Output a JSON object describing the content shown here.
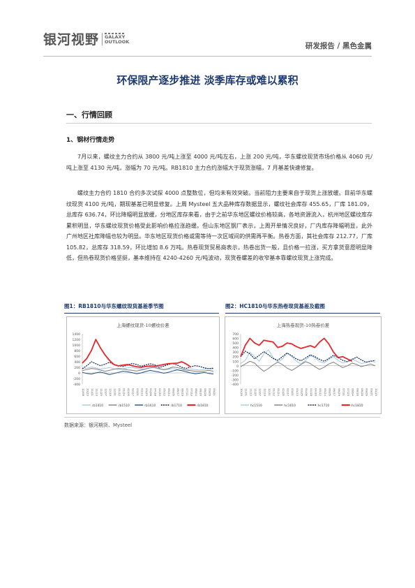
{
  "header": {
    "logo_cn": "银河视野",
    "logo_en_1": "GALAXY",
    "logo_en_2": "OUTLOOK",
    "breadcrumb": "研发报告 / 黑色金属"
  },
  "doc": {
    "title": "环保限产逐步推进 淡季库存或难以累积",
    "section_1": "一、行情回顾",
    "subsection_1": "1、钢材行情走势",
    "para_1": "7月以来，螺纹主力合约从 3800 元/吨上涨至 4000 元/吨左右，上涨 200 元/吨，华东螺纹现货市场价格从 4060 元/吨上涨至 4130 元/吨，涨幅为 70 元/吨。RB1810 主力合约涨幅大于现货涨幅，7 月基差快速修复。",
    "para_2": "螺纹主力合约 1810 合约多次试探 4000 点整数位，但均未有效突破。当前阻力主要来自于现货上涨放缓。目前华东螺纹现货 4100 元/吨，期现基差已明显修复。上周 Mysteel 五大品种库存数据显示，螺纹社会库存 455.65，厂库 181.09，总库存 636.74，环比降幅明显放缓，分地区库存来看，由于之前华东地区螺纹价格较高，各地资源流入，杭州地区螺纹库存累积明显，华东螺纹现货价格受此影响价格拉涨趋缓。但山东地区钢厂表示，上周开单情况良好，厂内库存降幅明显，此外广州地区社库降幅也较为明显。华东地区现货价格或需等待一次区域间的供需再平衡。热卷方面，其社会库存 212.77，厂库 105.82，总库存 318.59，环比增加 8.6 万吨。热卷现货贸易商表示，热卷出货一般，且价格一拉涨，买方拿货意愿明显降低，但热卷现货价格坚挺，基本维持在 4240-4260 元/吨波动，现货卷螺差的收窄基本靠螺纹现货上涨完成。"
  },
  "figures": {
    "fig1_caption": "图1：RB1810与华东螺纹现货基差季节图",
    "fig2_caption": "图2：HC1810与华东热卷现货基差及截图",
    "source": "数据来源：银河期货、Mysteel"
  },
  "chart_data": [
    {
      "type": "line",
      "title": "上海螺纹现货-10螺纹价差",
      "ylim": [
        -400,
        1400
      ],
      "yticks": [
        -400,
        -200,
        0,
        200,
        400,
        600,
        800,
        1000,
        1200,
        1400
      ],
      "xlabels": [
        "10/08",
        "10/20",
        "11/01",
        "11/13",
        "11/25",
        "12/07",
        "12/19",
        "12/31",
        "01/12",
        "01/24",
        "02/05",
        "02/17",
        "03/01",
        "03/13",
        "03/25",
        "04/06",
        "04/18",
        "04/30",
        "05/12",
        "05/24",
        "06/05",
        "06/17",
        "06/29",
        "07/11",
        "07/23",
        "08/04",
        "08/16",
        "08/28",
        "09/09",
        "09/21"
      ],
      "legend_position": "bottom",
      "grid": false,
      "series": [
        {
          "name": "rb1410",
          "color": "#9ec9e2",
          "dash": false,
          "width": 1,
          "values": [
            150,
            170,
            210,
            180,
            140,
            160,
            190,
            150,
            120,
            140,
            180,
            200,
            160,
            130,
            150,
            200,
            180,
            140,
            110,
            130,
            160,
            120,
            90,
            110,
            140,
            120,
            100,
            130,
            160,
            140
          ]
        },
        {
          "name": "rb1510",
          "color": "#7f7f7f",
          "dash": false,
          "width": 1,
          "values": [
            80,
            120,
            160,
            140,
            100,
            60,
            90,
            130,
            160,
            140,
            110,
            90,
            70,
            100,
            140,
            180,
            200,
            160,
            120,
            150,
            210,
            190,
            150,
            100,
            80,
            60,
            50,
            70,
            90,
            60
          ]
        },
        {
          "name": "rb1610",
          "color": "#1a4f8a",
          "dash": false,
          "width": 1,
          "values": [
            20,
            -20,
            -40,
            0,
            30,
            -10,
            -60,
            -20,
            20,
            60,
            40,
            10,
            -30,
            0,
            50,
            90,
            60,
            30,
            -10,
            20,
            70,
            110,
            80,
            40,
            0,
            -30,
            -10,
            20,
            -20,
            -40
          ]
        },
        {
          "name": "rb1710",
          "color": "#0d1f55",
          "dash": true,
          "width": 1.2,
          "values": [
            150,
            260,
            400,
            330,
            260,
            310,
            380,
            300,
            260,
            230,
            280,
            340,
            300,
            240,
            280,
            330,
            290,
            200,
            240,
            300,
            340,
            280,
            200,
            160,
            220,
            260,
            230,
            180,
            150,
            170
          ]
        },
        {
          "name": "rb1810",
          "color": "#e8262b",
          "dash": false,
          "width": 1.8,
          "values": [
            350,
            520,
            800,
            1200,
            900,
            650,
            450,
            300,
            250,
            280,
            300,
            260,
            220,
            200,
            230,
            250,
            240,
            270,
            300,
            330,
            340,
            350,
            400,
            320,
            210,
            null,
            null,
            null,
            null,
            null
          ]
        }
      ]
    },
    {
      "type": "line",
      "title": "上海热卷现货-10热卷价差",
      "ylim": [
        -400,
        700
      ],
      "yticks": [
        -400,
        -300,
        -200,
        -100,
        0,
        100,
        200,
        300,
        400,
        500,
        600,
        700
      ],
      "xlabels": [
        "10/16",
        "11/01",
        "11/13",
        "11/25",
        "12/07",
        "12/19",
        "12/31",
        "01/12",
        "01/24",
        "02/05",
        "02/17",
        "03/01",
        "03/13",
        "03/25",
        "04/06",
        "04/18",
        "04/30",
        "05/12",
        "05/24",
        "06/05",
        "06/17",
        "06/29",
        "07/11",
        "07/23",
        "08/04",
        "08/16",
        "08/28",
        "09/09",
        "09/21",
        "10/15"
      ],
      "legend_position": "bottom",
      "grid": false,
      "series": [
        {
          "name": "hc1510",
          "color": "#9ec9e2",
          "dash": false,
          "width": 1,
          "values": [
            50,
            120,
            300,
            200,
            100,
            260,
            350,
            180,
            80,
            150,
            280,
            200,
            100,
            40,
            120,
            220,
            180,
            90,
            60,
            140,
            200,
            120,
            60,
            90,
            150,
            100,
            50,
            70,
            110,
            80
          ]
        },
        {
          "name": "hc1610",
          "color": "#7f7f7f",
          "dash": false,
          "width": 1,
          "values": [
            -20,
            40,
            100,
            60,
            -40,
            -120,
            -60,
            20,
            80,
            30,
            -50,
            -100,
            -40,
            30,
            90,
            50,
            -20,
            -80,
            -30,
            40,
            80,
            20,
            -40,
            0,
            60,
            30,
            -20,
            10,
            40,
            0
          ]
        },
        {
          "name": "hc1710",
          "color": "#0d1f55",
          "dash": true,
          "width": 1.2,
          "values": [
            200,
            320,
            260,
            150,
            230,
            310,
            240,
            160,
            120,
            200,
            280,
            220,
            150,
            110,
            170,
            240,
            200,
            140,
            100,
            160,
            230,
            180,
            120,
            90,
            140,
            190,
            130,
            80,
            100,
            120
          ]
        },
        {
          "name": "hc1810",
          "color": "#e8262b",
          "dash": false,
          "width": 1.8,
          "values": [
            200,
            450,
            600,
            500,
            450,
            560,
            540,
            520,
            400,
            430,
            500,
            480,
            420,
            380,
            410,
            440,
            400,
            520,
            600,
            480,
            300,
            180,
            200,
            150,
            100,
            null,
            null,
            null,
            null,
            null
          ]
        }
      ]
    }
  ]
}
